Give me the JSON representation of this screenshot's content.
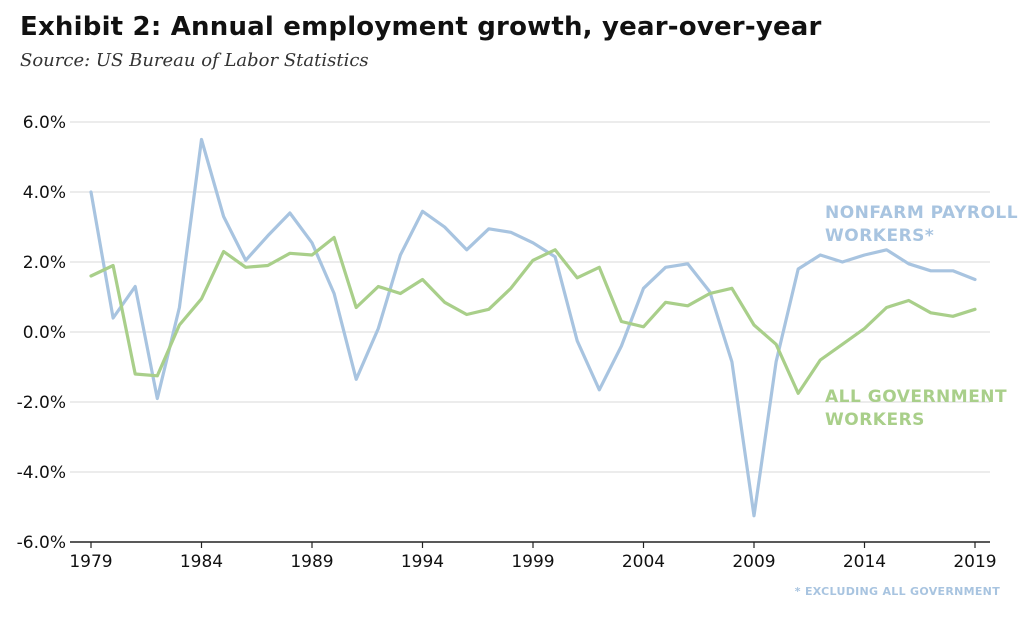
{
  "title": "Exhibit 2: Annual employment growth, year-over-year",
  "subtitle": "Source: US Bureau of Labor Statistics",
  "footnote": "* EXCLUDING ALL GOVERNMENT",
  "colors": {
    "nonfarm": "#a8c4e0",
    "government": "#a9cf8a",
    "grid": "#d9d9d9",
    "axis": "#222222"
  },
  "chart_data": {
    "type": "line",
    "xlim": [
      1979,
      2019
    ],
    "ylim": [
      -6.0,
      6.0
    ],
    "x_ticks": [
      1979,
      1984,
      1989,
      1994,
      1999,
      2004,
      2009,
      2014,
      2019
    ],
    "x_tick_labels": [
      "1979",
      "1984",
      "1989",
      "1994",
      "1999",
      "2004",
      "2009",
      "2014",
      "2019"
    ],
    "y_ticks": [
      6,
      4,
      2,
      0,
      -2,
      -4,
      -6
    ],
    "y_tick_labels": [
      "6.0%",
      "4.0%",
      "2.0%",
      "0.0%",
      "-2.0%",
      "-4.0%",
      "-6.0%"
    ],
    "grid": true,
    "x": [
      1979,
      1980,
      1981,
      1982,
      1983,
      1984,
      1985,
      1986,
      1987,
      1988,
      1989,
      1990,
      1991,
      1992,
      1993,
      1994,
      1995,
      1996,
      1997,
      1998,
      1999,
      2000,
      2001,
      2002,
      2003,
      2004,
      2005,
      2006,
      2007,
      2008,
      2009,
      2010,
      2011,
      2012,
      2013,
      2014,
      2015,
      2016,
      2017,
      2018,
      2019
    ],
    "series": [
      {
        "name": "NONFARM PAYROLL WORKERS*",
        "label_lines": [
          "NONFARM PAYROLL",
          "WORKERS*"
        ],
        "values": [
          4.0,
          0.4,
          1.3,
          -1.9,
          0.7,
          5.5,
          3.3,
          2.05,
          2.75,
          3.4,
          2.55,
          1.1,
          -1.35,
          0.1,
          2.2,
          3.45,
          3.0,
          2.35,
          2.95,
          2.85,
          2.55,
          2.15,
          -0.25,
          -1.65,
          -0.4,
          1.25,
          1.85,
          1.95,
          1.15,
          -0.85,
          -5.25,
          -0.85,
          1.8,
          2.2,
          2.0,
          2.2,
          2.35,
          1.95,
          1.75,
          1.75,
          1.5
        ]
      },
      {
        "name": "ALL GOVERNMENT WORKERS",
        "label_lines": [
          "ALL GOVERNMENT",
          "WORKERS"
        ],
        "values": [
          1.6,
          1.9,
          -1.2,
          -1.25,
          0.2,
          0.95,
          2.3,
          1.85,
          1.9,
          2.25,
          2.2,
          2.7,
          0.7,
          1.3,
          1.1,
          1.5,
          0.85,
          0.5,
          0.65,
          1.25,
          2.05,
          2.35,
          1.55,
          1.85,
          0.3,
          0.15,
          0.85,
          0.75,
          1.1,
          1.25,
          0.2,
          -0.35,
          -1.75,
          -0.8,
          -0.35,
          0.1,
          0.7,
          0.9,
          0.55,
          0.45,
          0.65
        ]
      }
    ]
  }
}
